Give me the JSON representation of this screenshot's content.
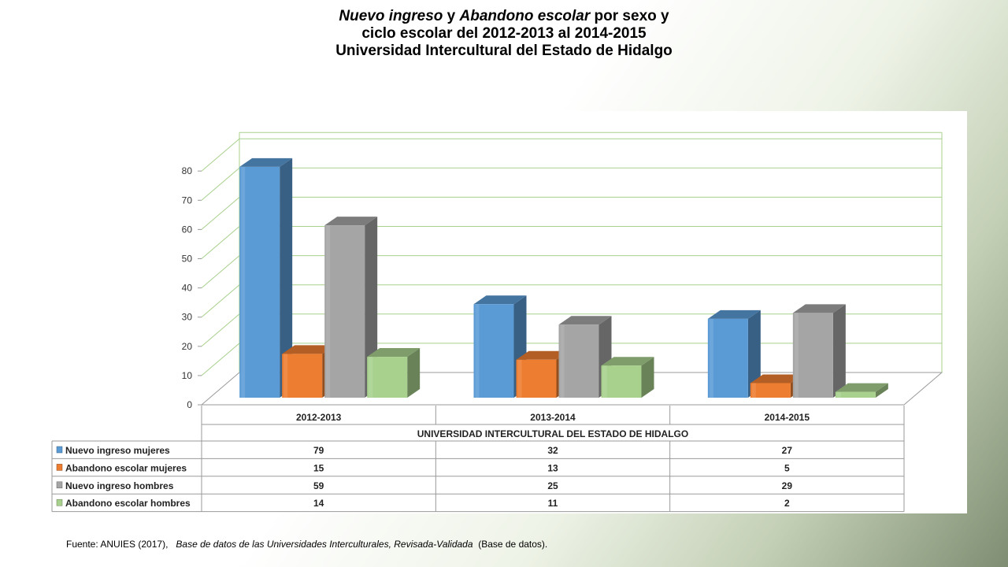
{
  "title": {
    "line1_italic_a": "Nuevo ingreso",
    "line1_sep": " y ",
    "line1_italic_b": "Abandono escolar",
    "line1_rest": " por sexo y",
    "line2": "ciclo escolar del 2012-2013 al 2014-2015",
    "line3": "Universidad Intercultural del Estado de Hidalgo"
  },
  "chart_data": {
    "type": "bar",
    "style": "3d-clustered-column",
    "categories": [
      "2012-2013",
      "2013-2014",
      "2014-2015"
    ],
    "category_group_label": "UNIVERSIDAD INTERCULTURAL DEL ESTADO DE HIDALGO",
    "series": [
      {
        "name": "Nuevo ingreso mujeres",
        "values": [
          79,
          32,
          27
        ],
        "color": "#5b9bd5"
      },
      {
        "name": "Abandono escolar mujeres",
        "values": [
          15,
          13,
          5
        ],
        "color": "#ed7d31"
      },
      {
        "name": "Nuevo ingreso hombres",
        "values": [
          59,
          25,
          29
        ],
        "color": "#a5a5a5"
      },
      {
        "name": "Abandono escolar hombres",
        "values": [
          14,
          11,
          2
        ],
        "color": "#a9d18e"
      }
    ],
    "ylim": [
      0,
      80
    ],
    "yticks": [
      0,
      10,
      20,
      30,
      40,
      50,
      60,
      70,
      80
    ],
    "grid": true,
    "grid_color": "#a8d08d",
    "legend": "data-table"
  },
  "footer": {
    "source": "Fuente: ANUIES (2017),",
    "title_italic": "Base de datos de las Universidades  Interculturales, Revisada-Validada",
    "note": "(Base de datos)."
  }
}
